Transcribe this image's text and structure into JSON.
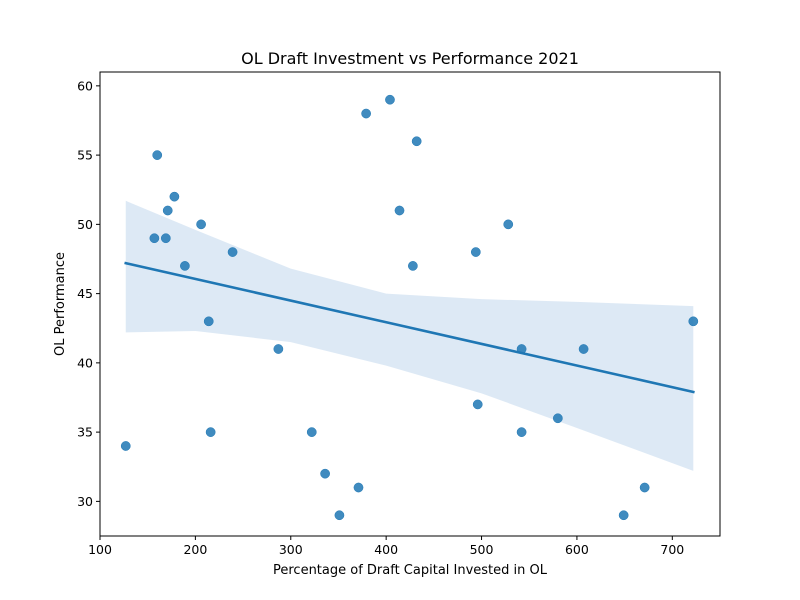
{
  "chart_data": {
    "type": "scatter",
    "title": "OL Draft Investment vs Performance 2021",
    "xlabel": "Percentage of Draft Capital Invested in OL",
    "ylabel": "OL Performance",
    "xlim": [
      100,
      750
    ],
    "ylim": [
      27.5,
      61
    ],
    "xticks": [
      100,
      200,
      300,
      400,
      500,
      600,
      700
    ],
    "yticks": [
      30,
      35,
      40,
      45,
      50,
      55,
      60
    ],
    "grid": false,
    "colors": {
      "points": "#1f77b4",
      "regression_line": "#1f77b4",
      "confidence_band": "#c6dbef"
    },
    "points": [
      {
        "x": 127,
        "y": 34
      },
      {
        "x": 157,
        "y": 49
      },
      {
        "x": 160,
        "y": 55
      },
      {
        "x": 169,
        "y": 49
      },
      {
        "x": 171,
        "y": 51
      },
      {
        "x": 178,
        "y": 52
      },
      {
        "x": 189,
        "y": 47
      },
      {
        "x": 206,
        "y": 50
      },
      {
        "x": 214,
        "y": 43
      },
      {
        "x": 216,
        "y": 35
      },
      {
        "x": 239,
        "y": 48
      },
      {
        "x": 287,
        "y": 41
      },
      {
        "x": 322,
        "y": 35
      },
      {
        "x": 336,
        "y": 32
      },
      {
        "x": 351,
        "y": 29
      },
      {
        "x": 371,
        "y": 31
      },
      {
        "x": 379,
        "y": 58
      },
      {
        "x": 404,
        "y": 59
      },
      {
        "x": 414,
        "y": 51
      },
      {
        "x": 428,
        "y": 47
      },
      {
        "x": 432,
        "y": 56
      },
      {
        "x": 494,
        "y": 48
      },
      {
        "x": 496,
        "y": 37
      },
      {
        "x": 528,
        "y": 50
      },
      {
        "x": 542,
        "y": 41
      },
      {
        "x": 542,
        "y": 35
      },
      {
        "x": 580,
        "y": 36
      },
      {
        "x": 607,
        "y": 41
      },
      {
        "x": 649,
        "y": 29
      },
      {
        "x": 671,
        "y": 31
      },
      {
        "x": 722,
        "y": 43
      }
    ],
    "regression": {
      "x_start": 127,
      "y_start": 47.2,
      "x_end": 722,
      "y_end": 37.9
    },
    "confidence_band": {
      "upper": [
        {
          "x": 127,
          "y": 51.7
        },
        {
          "x": 200,
          "y": 49.6
        },
        {
          "x": 300,
          "y": 46.8
        },
        {
          "x": 400,
          "y": 45.0
        },
        {
          "x": 500,
          "y": 44.6
        },
        {
          "x": 600,
          "y": 44.4
        },
        {
          "x": 722,
          "y": 44.1
        }
      ],
      "lower": [
        {
          "x": 127,
          "y": 42.2
        },
        {
          "x": 200,
          "y": 42.3
        },
        {
          "x": 300,
          "y": 41.5
        },
        {
          "x": 400,
          "y": 39.8
        },
        {
          "x": 500,
          "y": 37.8
        },
        {
          "x": 600,
          "y": 35.3
        },
        {
          "x": 722,
          "y": 32.2
        }
      ]
    }
  }
}
